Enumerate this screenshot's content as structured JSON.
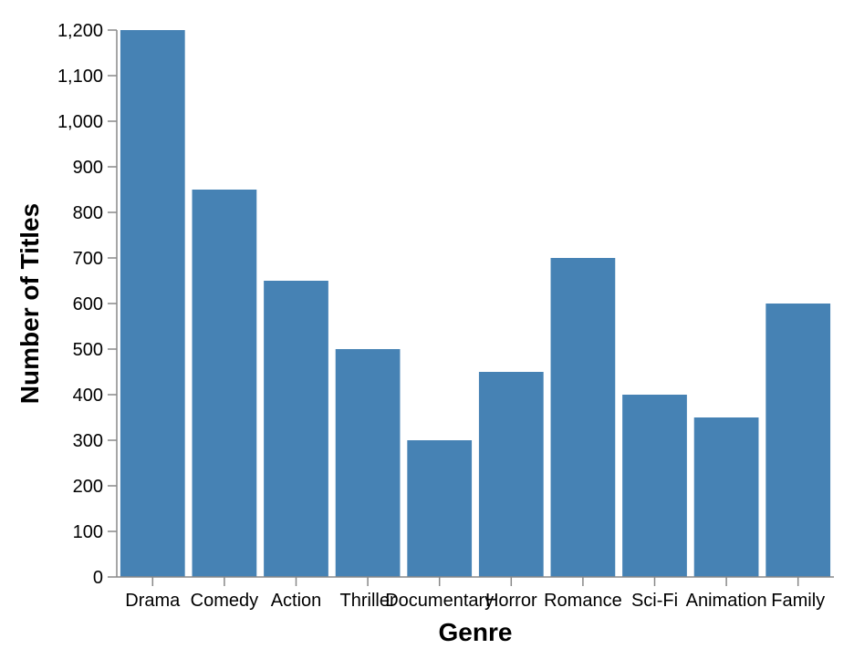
{
  "chart_data": {
    "type": "bar",
    "title": "",
    "xlabel": "Genre",
    "ylabel": "Number of Titles",
    "categories": [
      "Drama",
      "Comedy",
      "Action",
      "Thriller",
      "Documentary",
      "Horror",
      "Romance",
      "Sci-Fi",
      "Animation",
      "Family"
    ],
    "values": [
      1200,
      850,
      650,
      500,
      300,
      450,
      700,
      400,
      350,
      600
    ],
    "ylim": [
      0,
      1200
    ],
    "yticks": [
      0,
      100,
      200,
      300,
      400,
      500,
      600,
      700,
      800,
      900,
      1000,
      1100,
      1200
    ],
    "ytick_labels": [
      "0",
      "100",
      "200",
      "300",
      "400",
      "500",
      "600",
      "700",
      "800",
      "900",
      "1,000",
      "1,100",
      "1,200"
    ],
    "grid": false,
    "legend": "none",
    "bar_color": "#4682b4"
  }
}
